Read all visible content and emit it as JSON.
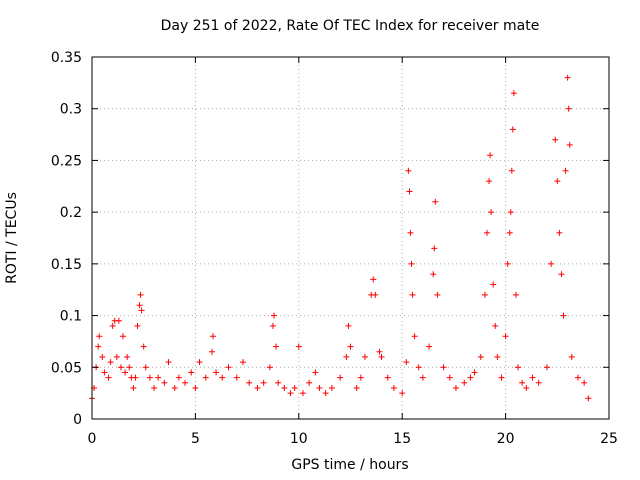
{
  "chart_data": {
    "type": "scatter",
    "title": "Day 251 of 2022, Rate Of TEC Index for receiver mate",
    "xlabel": "GPS time / hours",
    "ylabel": "ROTI / TECUs",
    "xlim": [
      0,
      25
    ],
    "ylim": [
      0,
      0.35
    ],
    "xticks": [
      0,
      5,
      10,
      15,
      20,
      25
    ],
    "yticks": [
      0,
      0.05,
      0.1,
      0.15,
      0.2,
      0.25,
      0.3,
      0.35
    ],
    "xtick_labels": [
      "0",
      "5",
      "10",
      "15",
      "20",
      "25"
    ],
    "ytick_labels": [
      "0",
      "0.05",
      "0.1",
      "0.15",
      "0.2",
      "0.25",
      "0.3",
      "0.35"
    ],
    "grid": true,
    "marker": "+",
    "series_color": "#ff0000",
    "series": [
      {
        "name": "ROTI",
        "points": [
          [
            0.0,
            0.02
          ],
          [
            0.1,
            0.03
          ],
          [
            0.2,
            0.05
          ],
          [
            0.3,
            0.07
          ],
          [
            0.35,
            0.08
          ],
          [
            0.5,
            0.06
          ],
          [
            0.6,
            0.045
          ],
          [
            0.8,
            0.04
          ],
          [
            0.9,
            0.055
          ],
          [
            1.0,
            0.09
          ],
          [
            1.1,
            0.095
          ],
          [
            1.2,
            0.06
          ],
          [
            1.3,
            0.095
          ],
          [
            1.4,
            0.05
          ],
          [
            1.5,
            0.08
          ],
          [
            1.6,
            0.045
          ],
          [
            1.7,
            0.06
          ],
          [
            1.8,
            0.05
          ],
          [
            1.9,
            0.04
          ],
          [
            2.0,
            0.03
          ],
          [
            2.1,
            0.04
          ],
          [
            2.2,
            0.09
          ],
          [
            2.3,
            0.11
          ],
          [
            2.35,
            0.12
          ],
          [
            2.4,
            0.105
          ],
          [
            2.5,
            0.07
          ],
          [
            2.6,
            0.05
          ],
          [
            2.8,
            0.04
          ],
          [
            3.0,
            0.03
          ],
          [
            3.2,
            0.04
          ],
          [
            3.5,
            0.035
          ],
          [
            3.7,
            0.055
          ],
          [
            4.0,
            0.03
          ],
          [
            4.2,
            0.04
          ],
          [
            4.5,
            0.035
          ],
          [
            4.8,
            0.045
          ],
          [
            5.0,
            0.03
          ],
          [
            5.2,
            0.055
          ],
          [
            5.5,
            0.04
          ],
          [
            5.8,
            0.065
          ],
          [
            5.85,
            0.08
          ],
          [
            6.0,
            0.045
          ],
          [
            6.3,
            0.04
          ],
          [
            6.6,
            0.05
          ],
          [
            7.0,
            0.04
          ],
          [
            7.3,
            0.055
          ],
          [
            7.6,
            0.035
          ],
          [
            8.0,
            0.03
          ],
          [
            8.3,
            0.035
          ],
          [
            8.6,
            0.05
          ],
          [
            8.75,
            0.09
          ],
          [
            8.8,
            0.1
          ],
          [
            8.9,
            0.07
          ],
          [
            9.0,
            0.035
          ],
          [
            9.3,
            0.03
          ],
          [
            9.6,
            0.025
          ],
          [
            9.8,
            0.03
          ],
          [
            10.0,
            0.07
          ],
          [
            10.2,
            0.025
          ],
          [
            10.5,
            0.035
          ],
          [
            10.8,
            0.045
          ],
          [
            11.0,
            0.03
          ],
          [
            11.3,
            0.025
          ],
          [
            11.6,
            0.03
          ],
          [
            12.0,
            0.04
          ],
          [
            12.3,
            0.06
          ],
          [
            12.4,
            0.09
          ],
          [
            12.5,
            0.07
          ],
          [
            12.8,
            0.03
          ],
          [
            13.0,
            0.04
          ],
          [
            13.2,
            0.06
          ],
          [
            13.5,
            0.12
          ],
          [
            13.6,
            0.135
          ],
          [
            13.7,
            0.12
          ],
          [
            13.9,
            0.065
          ],
          [
            14.0,
            0.06
          ],
          [
            14.3,
            0.04
          ],
          [
            14.6,
            0.03
          ],
          [
            15.0,
            0.025
          ],
          [
            15.2,
            0.055
          ],
          [
            15.3,
            0.24
          ],
          [
            15.35,
            0.22
          ],
          [
            15.4,
            0.18
          ],
          [
            15.45,
            0.15
          ],
          [
            15.5,
            0.12
          ],
          [
            15.6,
            0.08
          ],
          [
            15.8,
            0.05
          ],
          [
            16.0,
            0.04
          ],
          [
            16.3,
            0.07
          ],
          [
            16.5,
            0.14
          ],
          [
            16.55,
            0.165
          ],
          [
            16.6,
            0.21
          ],
          [
            16.7,
            0.12
          ],
          [
            17.0,
            0.05
          ],
          [
            17.3,
            0.04
          ],
          [
            17.6,
            0.03
          ],
          [
            18.0,
            0.035
          ],
          [
            18.3,
            0.04
          ],
          [
            18.5,
            0.045
          ],
          [
            18.8,
            0.06
          ],
          [
            19.0,
            0.12
          ],
          [
            19.1,
            0.18
          ],
          [
            19.2,
            0.23
          ],
          [
            19.25,
            0.255
          ],
          [
            19.3,
            0.2
          ],
          [
            19.4,
            0.13
          ],
          [
            19.5,
            0.09
          ],
          [
            19.6,
            0.06
          ],
          [
            19.8,
            0.04
          ],
          [
            20.0,
            0.08
          ],
          [
            20.1,
            0.15
          ],
          [
            20.2,
            0.18
          ],
          [
            20.25,
            0.2
          ],
          [
            20.3,
            0.24
          ],
          [
            20.35,
            0.28
          ],
          [
            20.4,
            0.315
          ],
          [
            20.5,
            0.12
          ],
          [
            20.6,
            0.05
          ],
          [
            20.8,
            0.035
          ],
          [
            21.0,
            0.03
          ],
          [
            21.3,
            0.04
          ],
          [
            21.6,
            0.035
          ],
          [
            22.0,
            0.05
          ],
          [
            22.2,
            0.15
          ],
          [
            22.4,
            0.27
          ],
          [
            22.5,
            0.23
          ],
          [
            22.6,
            0.18
          ],
          [
            22.7,
            0.14
          ],
          [
            22.8,
            0.1
          ],
          [
            22.9,
            0.24
          ],
          [
            23.0,
            0.33
          ],
          [
            23.05,
            0.3
          ],
          [
            23.1,
            0.265
          ],
          [
            23.2,
            0.06
          ],
          [
            23.5,
            0.04
          ],
          [
            23.8,
            0.035
          ],
          [
            24.0,
            0.02
          ]
        ]
      }
    ]
  }
}
